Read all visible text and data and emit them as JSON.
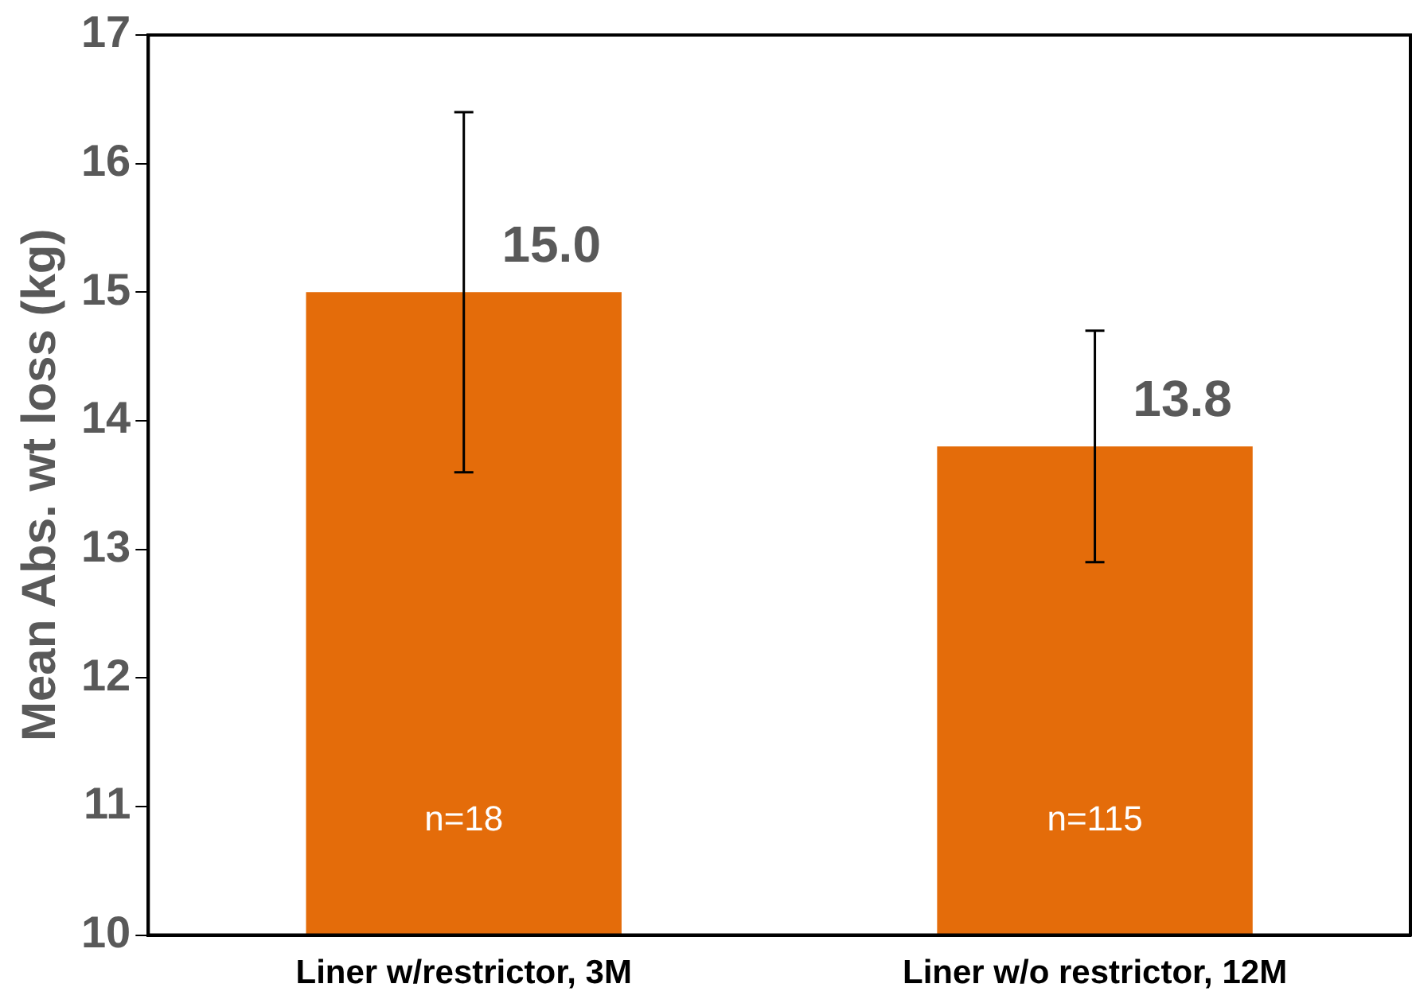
{
  "chart_data": {
    "type": "bar",
    "ylabel": "Mean Abs. wt loss (kg)",
    "categories": [
      "Liner w/restrictor, 3M",
      "Liner w/o restrictor, 12M"
    ],
    "values": [
      15.0,
      13.8
    ],
    "color": "#e46c0a",
    "errors": [
      [
        13.6,
        16.4
      ],
      [
        12.9,
        14.7
      ]
    ],
    "value_labels": [
      "15.0",
      "13.8"
    ],
    "ylim": [
      10,
      17
    ],
    "yticks": [
      10,
      11,
      12,
      13,
      14,
      15,
      16,
      17
    ],
    "grid": false,
    "legend": false,
    "annotations": [
      "n=18",
      "n=115"
    ]
  }
}
